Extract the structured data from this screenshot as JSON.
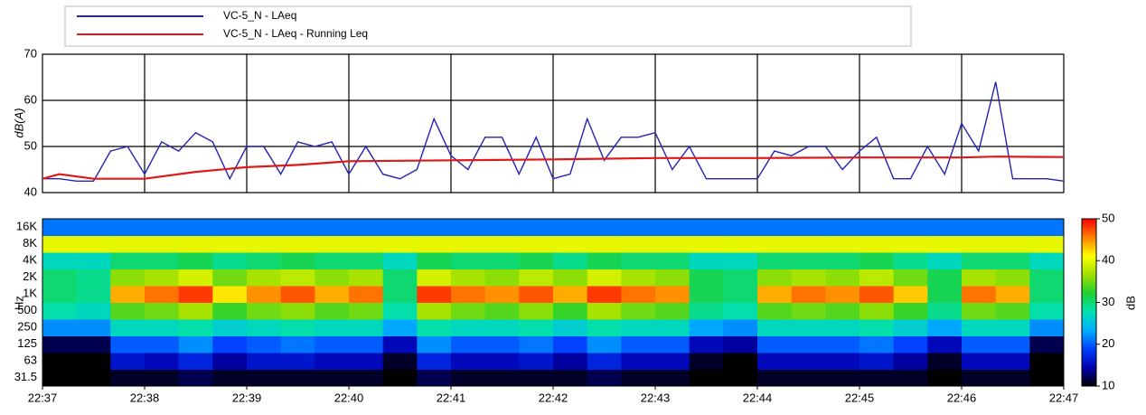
{
  "chart_data": [
    {
      "type": "line",
      "ylabel": "dB(A)",
      "xlim": [
        0,
        600
      ],
      "xticks": [
        0,
        60,
        120,
        180,
        240,
        300,
        360,
        420,
        480,
        540,
        600
      ],
      "ylim": [
        40,
        70
      ],
      "yticks": [
        40,
        50,
        60,
        70
      ],
      "grid": true,
      "series": [
        {
          "name": "VC-5_N - LAeq",
          "color": "#2323b4",
          "x": [
            0,
            10,
            20,
            30,
            40,
            50,
            60,
            70,
            80,
            90,
            100,
            110,
            120,
            130,
            140,
            150,
            160,
            170,
            180,
            190,
            200,
            210,
            220,
            230,
            240,
            250,
            260,
            270,
            280,
            290,
            300,
            310,
            320,
            330,
            340,
            350,
            360,
            370,
            380,
            390,
            400,
            410,
            420,
            430,
            440,
            450,
            460,
            470,
            480,
            490,
            500,
            510,
            520,
            530,
            540,
            550,
            560,
            570,
            580,
            590,
            600
          ],
          "values": [
            43,
            43,
            42.5,
            42.5,
            49,
            50,
            44,
            51,
            49,
            53,
            51,
            43,
            50,
            50,
            44,
            51,
            50,
            51,
            44,
            50,
            44,
            43,
            45,
            56,
            48,
            45,
            52,
            52,
            44,
            52,
            43,
            44,
            56,
            47,
            52,
            52,
            53,
            45,
            50,
            43,
            43,
            43,
            43,
            49,
            48,
            50,
            50,
            45,
            49,
            52,
            43,
            43,
            50,
            44,
            55,
            49,
            64,
            43,
            43,
            43,
            42.5
          ]
        },
        {
          "name": "VC-5_N - LAeq - Running Leq",
          "color": "#e01818",
          "x": [
            0,
            10,
            30,
            60,
            90,
            120,
            150,
            180,
            240,
            300,
            360,
            420,
            480,
            540,
            560,
            600
          ],
          "values": [
            43,
            44,
            43,
            43,
            44.5,
            45.5,
            46,
            46.8,
            47,
            47.2,
            47.5,
            47.5,
            47.6,
            47.6,
            47.8,
            47.7
          ]
        }
      ]
    },
    {
      "type": "heatmap",
      "ylabel": "Hz",
      "zlabel": "dB",
      "xlim": [
        0,
        600
      ],
      "xticks": [
        {
          "value": 0,
          "label": "22:37"
        },
        {
          "value": 60,
          "label": "22:38"
        },
        {
          "value": 120,
          "label": "22:39"
        },
        {
          "value": 180,
          "label": "22:40"
        },
        {
          "value": 240,
          "label": "22:41"
        },
        {
          "value": 300,
          "label": "22:42"
        },
        {
          "value": 360,
          "label": "22:43"
        },
        {
          "value": 420,
          "label": "22:44"
        },
        {
          "value": 480,
          "label": "22:45"
        },
        {
          "value": 540,
          "label": "22:46"
        },
        {
          "value": 600,
          "label": "22:47"
        }
      ],
      "x": [
        0,
        20,
        40,
        60,
        80,
        100,
        120,
        140,
        160,
        180,
        200,
        220,
        240,
        260,
        280,
        300,
        320,
        340,
        360,
        380,
        400,
        420,
        440,
        460,
        480,
        500,
        520,
        540,
        560,
        580
      ],
      "categories": [
        "31.5",
        "63",
        "125",
        "250",
        "500",
        "1K",
        "2K",
        "4K",
        "8K",
        "16K"
      ],
      "zlim": [
        10,
        50
      ],
      "zticks": [
        10,
        20,
        30,
        40,
        50
      ],
      "colorscale": [
        "#000000",
        "#0000b0",
        "#0040ff",
        "#00b0ff",
        "#00e0b0",
        "#20d030",
        "#a0e000",
        "#ffff00",
        "#ff8000",
        "#ff0000"
      ],
      "z": [
        [
          10,
          10,
          11,
          11,
          12,
          11,
          11,
          11,
          11,
          11,
          10,
          12,
          11,
          11,
          11,
          11,
          12,
          11,
          11,
          10,
          10,
          11,
          11,
          11,
          11,
          11,
          10,
          11,
          11,
          10
        ],
        [
          10,
          10,
          16,
          15,
          17,
          14,
          16,
          16,
          15,
          15,
          11,
          17,
          15,
          15,
          16,
          14,
          17,
          15,
          15,
          11,
          10,
          15,
          15,
          15,
          16,
          14,
          11,
          15,
          15,
          10
        ],
        [
          12,
          12,
          20,
          20,
          22,
          19,
          20,
          21,
          20,
          20,
          15,
          22,
          20,
          20,
          21,
          19,
          22,
          20,
          20,
          15,
          14,
          20,
          20,
          20,
          21,
          19,
          15,
          20,
          20,
          12
        ],
        [
          22,
          22,
          27,
          27,
          28,
          26,
          27,
          28,
          27,
          27,
          23,
          28,
          27,
          27,
          28,
          26,
          28,
          27,
          27,
          23,
          22,
          27,
          27,
          27,
          28,
          26,
          23,
          27,
          27,
          22
        ],
        [
          28,
          27,
          34,
          35,
          37,
          33,
          35,
          36,
          34,
          35,
          28,
          37,
          35,
          34,
          36,
          33,
          37,
          35,
          34,
          29,
          28,
          34,
          35,
          34,
          36,
          33,
          29,
          35,
          34,
          28
        ],
        [
          30,
          29,
          44,
          46,
          48,
          42,
          45,
          47,
          44,
          46,
          30,
          48,
          46,
          45,
          47,
          44,
          48,
          46,
          45,
          31,
          30,
          44,
          46,
          45,
          47,
          43,
          31,
          46,
          44,
          30
        ],
        [
          30,
          29,
          36,
          37,
          39,
          35,
          37,
          38,
          36,
          37,
          30,
          39,
          37,
          36,
          38,
          36,
          39,
          37,
          36,
          31,
          30,
          36,
          37,
          36,
          38,
          35,
          31,
          37,
          36,
          30
        ],
        [
          27,
          27,
          30,
          30,
          31,
          29,
          30,
          31,
          30,
          30,
          27,
          31,
          30,
          30,
          31,
          29,
          31,
          30,
          30,
          27,
          27,
          30,
          30,
          30,
          31,
          29,
          27,
          30,
          30,
          27
        ],
        [
          40,
          40,
          40,
          40,
          40,
          40,
          40,
          40,
          40,
          40,
          40,
          40,
          40,
          40,
          40,
          40,
          40,
          40,
          40,
          40,
          40,
          40,
          40,
          40,
          40,
          40,
          40,
          40,
          40,
          40
        ],
        [
          21,
          21,
          21,
          21,
          21,
          21,
          21,
          21,
          21,
          21,
          21,
          21,
          21,
          21,
          21,
          21,
          21,
          21,
          21,
          21,
          21,
          21,
          21,
          21,
          21,
          21,
          21,
          21,
          21,
          21
        ]
      ]
    }
  ]
}
